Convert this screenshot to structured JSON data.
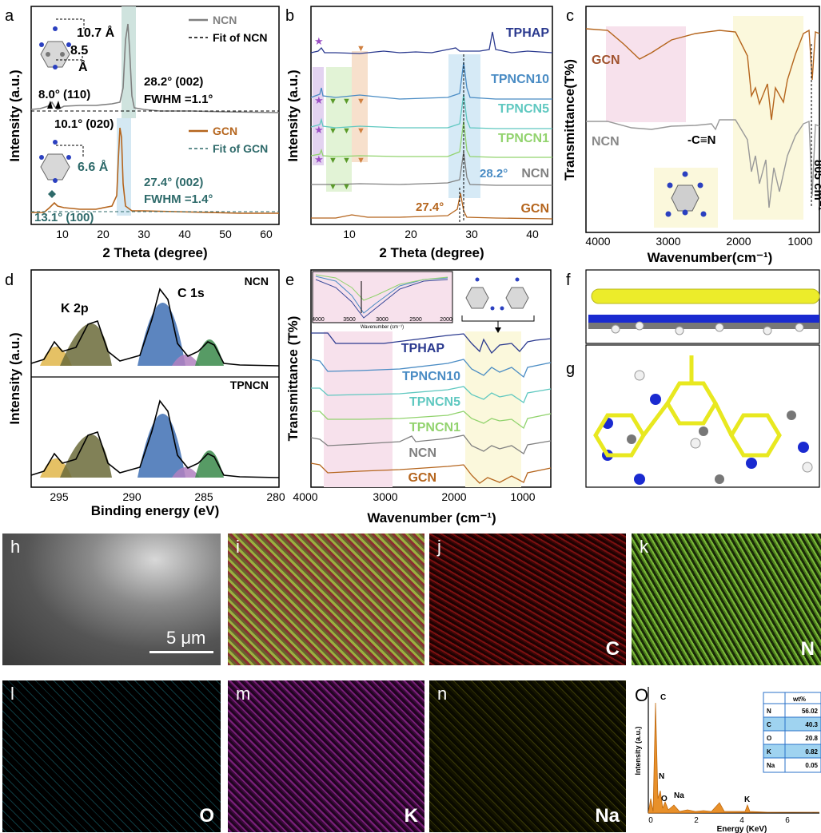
{
  "panel_a": {
    "label": "a",
    "xlabel": "2 Theta (degree)",
    "ylabel": "Intensity (a.u.)",
    "xticks": [
      "10",
      "20",
      "30",
      "40",
      "50",
      "60"
    ],
    "legend": [
      "NCN",
      "Fit of NCN",
      "GCN",
      "Fit of GCN"
    ],
    "ann_107": "10.7 Å",
    "ann_85": "8.5",
    "ann_85b": "Å",
    "ann_80": "8.0° (110)",
    "ann_101": "10.1° (020)",
    "ann_282": "28.2° (002)",
    "ann_fwhm1": "FWHM =1.1°",
    "ann_66": "6.6 Å",
    "ann_274": "27.4° (002)",
    "ann_fwhm2": "FWHM =1.4°",
    "ann_131": "13.1° (100)"
  },
  "panel_b": {
    "label": "b",
    "xlabel": "2 Theta (degree)",
    "ylabel": "Intensity (a.u.)",
    "xticks": [
      "10",
      "20",
      "30",
      "40"
    ],
    "series": [
      "TPHAP",
      "TPNCN10",
      "TPNCN5",
      "TPNCN1",
      "NCN",
      "GCN"
    ],
    "ann_282": "28.2°",
    "ann_274": "27.4°"
  },
  "panel_c": {
    "label": "c",
    "xlabel": "Wavenumber(cm⁻¹)",
    "ylabel": "Transmittance(T%)",
    "xticks": [
      "4000",
      "3000",
      "2000",
      "1000"
    ],
    "ann_gcn": "GCN",
    "ann_ncn": "NCN",
    "ann_cn": "-C≡N",
    "ann_805": "805 cm⁻¹"
  },
  "panel_d": {
    "label": "d",
    "xlabel": "Binding energy (eV)",
    "ylabel": "Intensity (a.u.)",
    "xticks": [
      "295",
      "290",
      "285",
      "280"
    ],
    "top_title": "NCN",
    "bottom_title": "TPNCN",
    "k2p": "K 2p",
    "c1s": "C 1s"
  },
  "panel_e": {
    "label": "e",
    "xlabel": "Wavenumber (cm⁻¹)",
    "ylabel": "Transmittance (T%)",
    "xticks": [
      "4000",
      "3000",
      "2000",
      "1000"
    ],
    "series": [
      "TPHAP",
      "TPNCN10",
      "TPNCN5",
      "TPNCN1",
      "NCN",
      "GCN"
    ],
    "inset_xticks": [
      "4000",
      "3500",
      "3000",
      "2500",
      "2000"
    ],
    "inset_xlabel": "Wavenumber (cm⁻¹)"
  },
  "panel_f": {
    "label": "f"
  },
  "panel_g": {
    "label": "g"
  },
  "panel_h": {
    "label": "h",
    "scale": "5 μm"
  },
  "maps": [
    {
      "label": "i",
      "element": ""
    },
    {
      "label": "j",
      "element": "C"
    },
    {
      "label": "k",
      "element": "N"
    },
    {
      "label": "l",
      "element": "O"
    },
    {
      "label": "m",
      "element": "K"
    },
    {
      "label": "n",
      "element": "Na"
    }
  ],
  "panel_o": {
    "label": "O",
    "xlabel": "Energy (KeV)",
    "ylabel": "Intensity (a.u.)",
    "xticks": [
      "0",
      "2",
      "4",
      "6"
    ],
    "peaks": [
      "C",
      "N",
      "O",
      "Na",
      "K"
    ],
    "table_header": "wt%",
    "table": [
      [
        "N",
        "56.02"
      ],
      [
        "C",
        "40.3"
      ],
      [
        "O",
        "20.8"
      ],
      [
        "K",
        "0.82"
      ],
      [
        "Na",
        "0.05"
      ]
    ]
  },
  "colors": {
    "ncn": "#808080",
    "gcn": "#b5651d",
    "tphap": "#2b3a8f",
    "tpncn10": "#4a8cc4",
    "tpncn5": "#5fc8c0",
    "tpncn1": "#92d36e"
  }
}
